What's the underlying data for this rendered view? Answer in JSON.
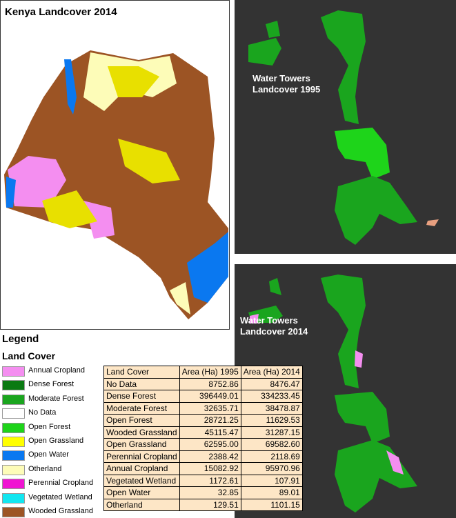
{
  "maps": {
    "main_title": "Kenya Landcover 2014",
    "tower_1995_title": "Water Towers Landcover 1995",
    "tower_2014_title": "Water Towers Landcover 2014"
  },
  "legend": {
    "title": "Legend",
    "subtitle": "Land Cover",
    "items": [
      {
        "label": "Annual Cropland",
        "color": "#f48ef0"
      },
      {
        "label": "Dense Forest",
        "color": "#0a7a12"
      },
      {
        "label": "Moderate Forest",
        "color": "#1aa51e"
      },
      {
        "label": "No Data",
        "color": "#ffffff"
      },
      {
        "label": "Open Forest",
        "color": "#1ed41a"
      },
      {
        "label": "Open Grassland",
        "color": "#ffff00"
      },
      {
        "label": "Open Water",
        "color": "#0a78f0"
      },
      {
        "label": "Otherland",
        "color": "#fdfcb8"
      },
      {
        "label": "Perennial Cropland",
        "color": "#f014d2"
      },
      {
        "label": "Vegetated Wetland",
        "color": "#12e6f0"
      },
      {
        "label": "Wooded Grassland",
        "color": "#9c5424"
      }
    ]
  },
  "table": {
    "header": [
      "Land Cover",
      "Area (Ha) 1995",
      "Area (Ha) 2014"
    ],
    "rows": [
      [
        "No Data",
        "8752.86",
        "8476.47"
      ],
      [
        "Dense Forest",
        "396449.01",
        "334233.45"
      ],
      [
        "Moderate Forest",
        "32635.71",
        "38478.87"
      ],
      [
        "Open Forest",
        "28721.25",
        "11629.53"
      ],
      [
        "Wooded Grassland",
        "45115.47",
        "31287.15"
      ],
      [
        "Open Grassland",
        "62595.00",
        "69582.60"
      ],
      [
        "Perennial Cropland",
        "2388.42",
        "2118.69"
      ],
      [
        "Annual Cropland",
        "15082.92",
        "95970.96"
      ],
      [
        "Vegetated Wetland",
        "1172.61",
        "107.91"
      ],
      [
        "Open Water",
        "32.85",
        "89.01"
      ],
      [
        "Otherland",
        "129.51",
        "1101.15"
      ]
    ]
  }
}
